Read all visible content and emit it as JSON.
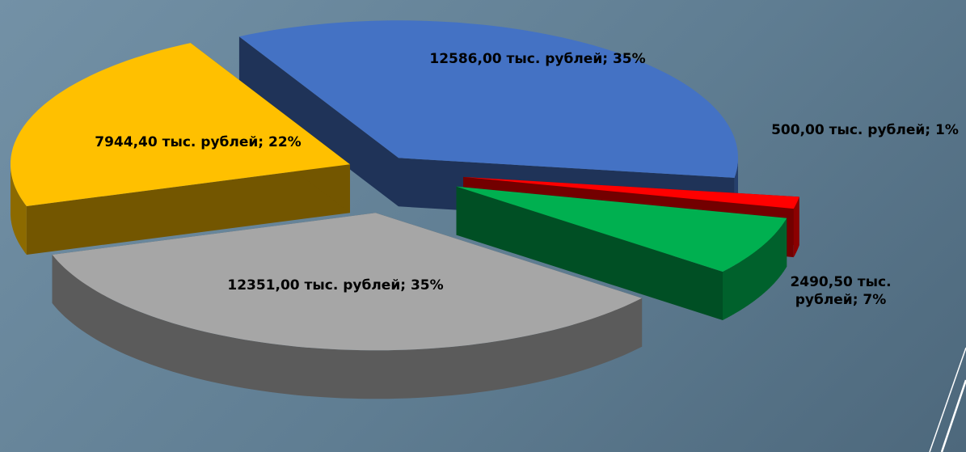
{
  "chart_data": {
    "type": "pie",
    "categories": [
      null,
      null,
      null,
      null,
      null
    ],
    "values": [
      12586,
      500,
      2490.5,
      12351,
      7944.4
    ],
    "value_labels": [
      "12586,00 тыс. рублей; 35%",
      "500,00 тыс. рублей; 1%",
      "2490,50 тыс. рублей; 7%",
      "12351,00 тыс. рублей; 35%",
      "7944,40 тыс. рублей; 22%"
    ],
    "colors": [
      "#4472c4",
      "#ff0000",
      "#00b050",
      "#a6a6a6",
      "#ffc000"
    ]
  }
}
